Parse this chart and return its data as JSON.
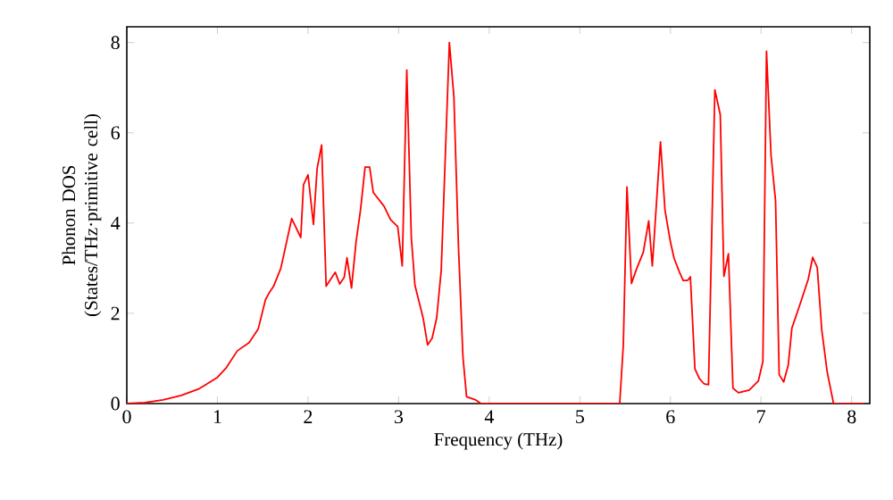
{
  "chart_data": {
    "type": "line",
    "xlabel": "Frequency (THz)",
    "ylabel": "Phonon DOS (States/THz·primitive cell)",
    "x": [
      0,
      0.2,
      0.4,
      0.6,
      0.8,
      1.0,
      1.1,
      1.22,
      1.35,
      1.45,
      1.53,
      1.57,
      1.62,
      1.7,
      1.82,
      1.92,
      1.95,
      2.0,
      2.06,
      2.1,
      2.15,
      2.2,
      2.3,
      2.35,
      2.4,
      2.43,
      2.48,
      2.53,
      2.58,
      2.63,
      2.68,
      2.72,
      2.84,
      2.91,
      2.99,
      3.04,
      3.09,
      3.14,
      3.18,
      3.27,
      3.32,
      3.37,
      3.42,
      3.47,
      3.56,
      3.61,
      3.66,
      3.71,
      3.75,
      3.85,
      3.91,
      4.0,
      5.0,
      5.44,
      5.48,
      5.52,
      5.57,
      5.62,
      5.7,
      5.76,
      5.8,
      5.89,
      5.94,
      6.0,
      6.04,
      6.1,
      6.14,
      6.19,
      6.22,
      6.27,
      6.32,
      6.37,
      6.42,
      6.49,
      6.55,
      6.59,
      6.64,
      6.69,
      6.75,
      6.87,
      6.97,
      7.02,
      7.06,
      7.11,
      7.16,
      7.2,
      7.25,
      7.3,
      7.34,
      7.43,
      7.52,
      7.57,
      7.62,
      7.67,
      7.73,
      7.8,
      8.14
    ],
    "series": [
      {
        "color": "#ff0000",
        "values": [
          0,
          0.02,
          0.08,
          0.18,
          0.33,
          0.58,
          0.8,
          1.17,
          1.35,
          1.65,
          2.3,
          2.45,
          2.6,
          3.0,
          4.1,
          3.68,
          4.85,
          5.07,
          3.97,
          5.2,
          5.73,
          2.6,
          2.91,
          2.65,
          2.8,
          3.23,
          2.56,
          3.58,
          4.3,
          5.24,
          5.24,
          4.68,
          4.37,
          4.08,
          3.92,
          3.05,
          7.39,
          3.68,
          2.62,
          1.9,
          1.3,
          1.45,
          1.9,
          2.95,
          8.0,
          6.8,
          3.5,
          1.03,
          0.15,
          0.08,
          0,
          0,
          0,
          0,
          1.3,
          4.8,
          2.66,
          2.95,
          3.35,
          4.05,
          3.05,
          5.8,
          4.28,
          3.58,
          3.22,
          2.91,
          2.73,
          2.73,
          2.81,
          0.77,
          0.55,
          0.44,
          0.42,
          6.95,
          6.4,
          2.82,
          3.32,
          0.34,
          0.24,
          0.3,
          0.5,
          0.93,
          7.81,
          5.5,
          4.5,
          0.64,
          0.48,
          0.85,
          1.67,
          2.2,
          2.75,
          3.24,
          3.02,
          1.63,
          0.7,
          0,
          0
        ]
      }
    ],
    "xlim": [
      0,
      8.2
    ],
    "ylim": [
      0,
      8.35
    ],
    "xticks": [
      0,
      1,
      2,
      3,
      4,
      5,
      6,
      7,
      8
    ],
    "yticks": [
      0,
      2,
      4,
      6,
      8
    ],
    "grid": false,
    "marker": "none",
    "line_style": "solid"
  }
}
